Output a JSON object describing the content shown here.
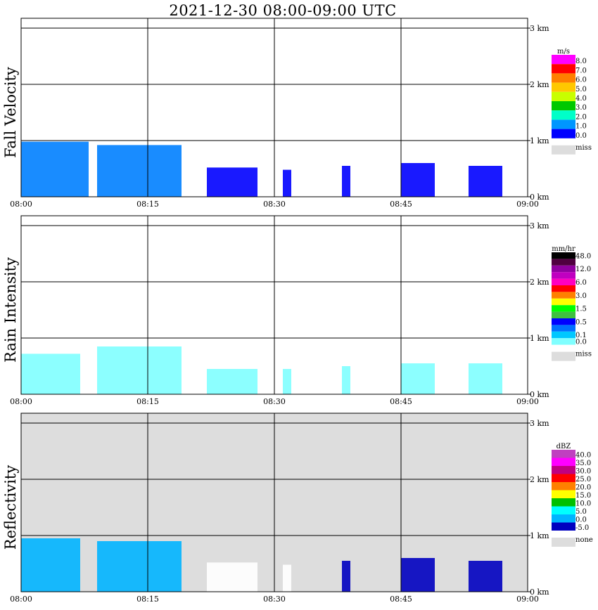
{
  "title": "2021-12-30   08:00-09:00 UTC",
  "chart_data": [
    {
      "type": "heatmap",
      "ylabel": "Fall Velocity",
      "x_ticks": [
        "08:00",
        "08:15",
        "08:30",
        "08:45",
        "09:00"
      ],
      "xlim": [
        "08:00",
        "09:00"
      ],
      "y_ticks": [
        "0 km",
        "1 km",
        "2 km",
        "3 km"
      ],
      "ylim_km": [
        0,
        3
      ],
      "grid": true,
      "background": "#ffffff",
      "legend": {
        "position": "right",
        "unit": "m/s",
        "labels": [
          "8.0",
          "7.0",
          "6.0",
          "5.0",
          "4.0",
          "3.0",
          "2.0",
          "1.0",
          "0.0"
        ],
        "colors": [
          "#ff00ff",
          "#ff0000",
          "#ff7f00",
          "#ffc800",
          "#c8ff00",
          "#00c800",
          "#00ffc8",
          "#0096ff",
          "#0000ff"
        ],
        "missing_label": "miss",
        "missing_color": "#dddddd"
      },
      "echoes": [
        {
          "t_start": "08:00",
          "t_end": "08:08",
          "h_top_km": 0.98,
          "color": "#0080ff"
        },
        {
          "t_start": "08:09",
          "t_end": "08:19",
          "h_top_km": 0.92,
          "color": "#0080ff"
        },
        {
          "t_start": "08:22",
          "t_end": "08:28",
          "h_top_km": 0.52,
          "color": "#0000ff"
        },
        {
          "t_start": "08:31",
          "t_end": "08:32",
          "h_top_km": 0.48,
          "color": "#0000ff"
        },
        {
          "t_start": "08:38",
          "t_end": "08:39",
          "h_top_km": 0.55,
          "color": "#0000ff"
        },
        {
          "t_start": "08:45",
          "t_end": "08:49",
          "h_top_km": 0.6,
          "color": "#0000ff"
        },
        {
          "t_start": "08:53",
          "t_end": "08:57",
          "h_top_km": 0.55,
          "color": "#0000ff"
        }
      ]
    },
    {
      "type": "heatmap",
      "ylabel": "Rain Intensity",
      "x_ticks": [
        "08:00",
        "08:15",
        "08:30",
        "08:45",
        "09:00"
      ],
      "xlim": [
        "08:00",
        "09:00"
      ],
      "y_ticks": [
        "0 km",
        "1 km",
        "2 km",
        "3 km"
      ],
      "ylim_km": [
        0,
        3
      ],
      "grid": true,
      "background": "#ffffff",
      "legend": {
        "position": "right",
        "unit": "mm/hr",
        "labels": [
          "48.0",
          "",
          "12.0",
          "",
          "6.0",
          "",
          "3.0",
          "",
          "1.5",
          "",
          "0.5",
          "",
          "0.1",
          "0.0"
        ],
        "colors": [
          "#000000",
          "#500040",
          "#9000a0",
          "#c000c0",
          "#ff00c0",
          "#ff0000",
          "#ff8000",
          "#ffff00",
          "#00ff00",
          "#40c040",
          "#0000ff",
          "#0070ff",
          "#00c8ff",
          "#80ffff"
        ],
        "missing_label": "miss",
        "missing_color": "#dddddd"
      },
      "echoes": [
        {
          "t_start": "08:00",
          "t_end": "08:07",
          "h_top_km": 0.72,
          "color": "#80ffff"
        },
        {
          "t_start": "08:09",
          "t_end": "08:19",
          "h_top_km": 0.85,
          "color": "#80ffff"
        },
        {
          "t_start": "08:22",
          "t_end": "08:28",
          "h_top_km": 0.45,
          "color": "#80ffff"
        },
        {
          "t_start": "08:31",
          "t_end": "08:32",
          "h_top_km": 0.45,
          "color": "#80ffff"
        },
        {
          "t_start": "08:38",
          "t_end": "08:39",
          "h_top_km": 0.5,
          "color": "#80ffff"
        },
        {
          "t_start": "08:45",
          "t_end": "08:49",
          "h_top_km": 0.55,
          "color": "#80ffff"
        },
        {
          "t_start": "08:53",
          "t_end": "08:57",
          "h_top_km": 0.55,
          "color": "#80ffff"
        }
      ]
    },
    {
      "type": "heatmap",
      "ylabel": "Reflectivity",
      "x_ticks": [
        "08:00",
        "08:15",
        "08:30",
        "08:45",
        "09:00"
      ],
      "xlim": [
        "08:00",
        "09:00"
      ],
      "y_ticks": [
        "0 km",
        "1 km",
        "2 km",
        "3 km"
      ],
      "ylim_km": [
        0,
        3
      ],
      "grid": true,
      "background": "#dddddd",
      "legend": {
        "position": "right",
        "unit": "dBZ",
        "labels": [
          "40.0",
          "35.0",
          "30.0",
          "25.0",
          "20.0",
          "15.0",
          "10.0",
          "5.0",
          "0.0",
          "-5.0"
        ],
        "colors": [
          "#c040c0",
          "#ff00ff",
          "#c00080",
          "#ff0000",
          "#ff8000",
          "#ffff00",
          "#00c000",
          "#00ffff",
          "#00b4ff",
          "#0000c0"
        ],
        "missing_label": "none",
        "missing_color": "#dddddd"
      },
      "echoes": [
        {
          "t_start": "08:00",
          "t_end": "08:07",
          "h_top_km": 0.95,
          "color": "#00b4ff"
        },
        {
          "t_start": "08:09",
          "t_end": "08:19",
          "h_top_km": 0.9,
          "color": "#00b4ff"
        },
        {
          "t_start": "08:22",
          "t_end": "08:28",
          "h_top_km": 0.52,
          "color": "#ffffff"
        },
        {
          "t_start": "08:31",
          "t_end": "08:32",
          "h_top_km": 0.48,
          "color": "#ffffff"
        },
        {
          "t_start": "08:38",
          "t_end": "08:39",
          "h_top_km": 0.55,
          "color": "#0000c0"
        },
        {
          "t_start": "08:45",
          "t_end": "08:49",
          "h_top_km": 0.6,
          "color": "#0000c0"
        },
        {
          "t_start": "08:53",
          "t_end": "08:57",
          "h_top_km": 0.55,
          "color": "#0000c0"
        }
      ]
    }
  ]
}
